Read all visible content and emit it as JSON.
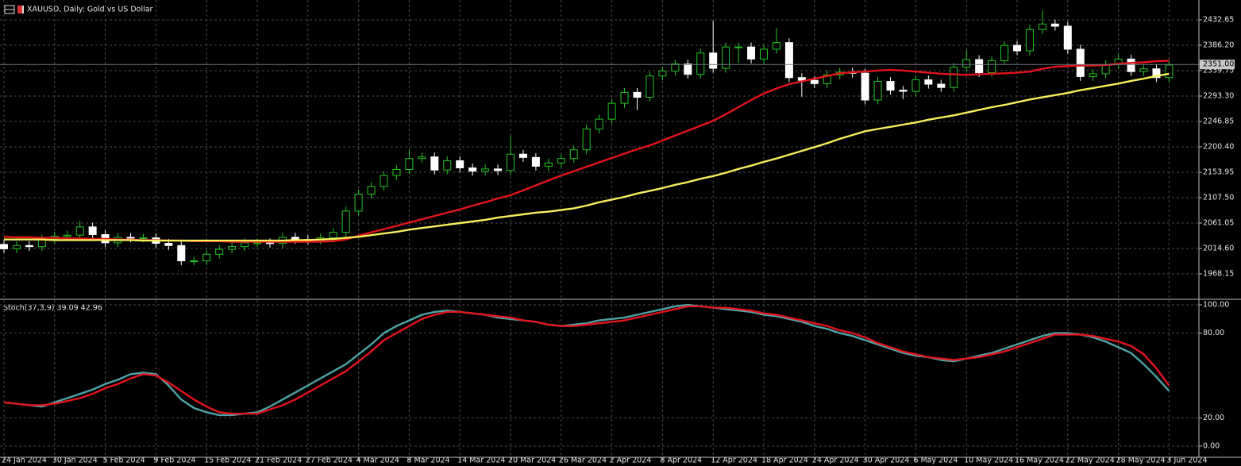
{
  "chart_data": [
    {
      "type": "candlestick",
      "title": "XAUUSD, Daily:  Gold vs US Dollar",
      "categories": [
        "24 Jan 2024",
        null,
        null,
        null,
        "30 Jan 2024",
        null,
        null,
        null,
        "5 Feb 2024",
        null,
        null,
        null,
        "9 Feb 2024",
        null,
        null,
        null,
        "15 Feb 2024",
        null,
        null,
        null,
        "21 Feb 2024",
        null,
        null,
        null,
        "27 Feb 2024",
        null,
        null,
        null,
        "4 Mar 2024",
        null,
        null,
        null,
        "8 Mar 2024",
        null,
        null,
        null,
        "14 Mar 2024",
        null,
        null,
        null,
        "20 Mar 2024",
        null,
        null,
        null,
        "26 Mar 2024",
        null,
        null,
        null,
        "2 Apr 2024",
        null,
        null,
        null,
        "8 Apr 2024",
        null,
        null,
        null,
        "12 Apr 2024",
        null,
        null,
        null,
        "18 Apr 2024",
        null,
        null,
        null,
        "24 Apr 2024",
        null,
        null,
        null,
        "30 Apr 2024",
        null,
        null,
        null,
        "6 May 2024",
        null,
        null,
        null,
        "10 May 2024",
        null,
        null,
        null,
        "16 May 2024",
        null,
        null,
        null,
        "22 May 2024",
        null,
        null,
        null,
        "28 May 2024",
        null,
        null,
        null,
        "3 Jun 2024"
      ],
      "open": [
        2022,
        2014,
        2020,
        2018,
        2032,
        2037,
        2039,
        2054,
        2040,
        2025,
        2035,
        2034,
        2034,
        2024,
        2020,
        1992,
        1992,
        2004,
        2013,
        2018,
        2025,
        2025,
        2024,
        2035,
        2031,
        2030,
        2034,
        2044,
        2083,
        2114,
        2128,
        2148,
        2159,
        2179,
        2182,
        2158,
        2175,
        2162,
        2156,
        2160,
        2157,
        2187,
        2181,
        2165,
        2171,
        2179,
        2195,
        2233,
        2251,
        2280,
        2300,
        2291,
        2330,
        2339,
        2352,
        2333,
        2372,
        2344,
        2383,
        2383,
        2361,
        2379,
        2391,
        2327,
        2322,
        2316,
        2332,
        2337,
        2335,
        2286,
        2320,
        2304,
        2302,
        2323,
        2315,
        2309,
        2346,
        2360,
        2336,
        2358,
        2386,
        2376,
        2415,
        2425,
        2421,
        2379,
        2329,
        2334,
        2351,
        2361,
        2338,
        2343,
        2327
      ],
      "high": [
        2030,
        2028,
        2028,
        2040,
        2045,
        2047,
        2065,
        2062,
        2048,
        2043,
        2043,
        2042,
        2042,
        2032,
        2028,
        2000,
        2012,
        2021,
        2026,
        2033,
        2033,
        2033,
        2043,
        2043,
        2039,
        2042,
        2052,
        2091,
        2122,
        2136,
        2156,
        2167,
        2195,
        2190,
        2190,
        2183,
        2183,
        2170,
        2168,
        2168,
        2222,
        2195,
        2189,
        2179,
        2187,
        2203,
        2241,
        2259,
        2288,
        2308,
        2308,
        2338,
        2347,
        2360,
        2360,
        2380,
        2431,
        2391,
        2391,
        2391,
        2387,
        2418,
        2399,
        2335,
        2330,
        2340,
        2345,
        2345,
        2343,
        2328,
        2328,
        2312,
        2331,
        2331,
        2323,
        2354,
        2378,
        2368,
        2366,
        2394,
        2394,
        2423,
        2450,
        2433,
        2429,
        2387,
        2342,
        2359,
        2369,
        2369,
        2351,
        2351,
        2358
      ],
      "low": [
        2006,
        2006,
        2010,
        2010,
        2024,
        2029,
        2031,
        2032,
        2017,
        2017,
        2026,
        2026,
        2016,
        2012,
        1984,
        1984,
        1984,
        1996,
        2005,
        2010,
        2017,
        2016,
        2016,
        2023,
        2022,
        2022,
        2026,
        2036,
        2075,
        2106,
        2120,
        2140,
        2151,
        2171,
        2150,
        2150,
        2154,
        2148,
        2148,
        2149,
        2149,
        2173,
        2157,
        2157,
        2163,
        2171,
        2187,
        2225,
        2243,
        2272,
        2268,
        2283,
        2322,
        2331,
        2325,
        2325,
        2336,
        2336,
        2354,
        2353,
        2353,
        2371,
        2319,
        2292,
        2308,
        2308,
        2324,
        2327,
        2278,
        2278,
        2296,
        2288,
        2294,
        2307,
        2301,
        2301,
        2338,
        2328,
        2328,
        2350,
        2368,
        2368,
        2407,
        2413,
        2371,
        2321,
        2321,
        2326,
        2343,
        2330,
        2330,
        2319,
        2319
      ],
      "close": [
        2014,
        2020,
        2018,
        2032,
        2037,
        2039,
        2054,
        2040,
        2025,
        2035,
        2034,
        2034,
        2024,
        2020,
        1992,
        1992,
        2004,
        2013,
        2018,
        2025,
        2025,
        2024,
        2035,
        2031,
        2030,
        2034,
        2044,
        2083,
        2114,
        2128,
        2148,
        2159,
        2179,
        2182,
        2158,
        2175,
        2162,
        2156,
        2160,
        2157,
        2187,
        2181,
        2165,
        2171,
        2179,
        2195,
        2233,
        2251,
        2280,
        2300,
        2291,
        2330,
        2339,
        2352,
        2333,
        2372,
        2344,
        2383,
        2383,
        2361,
        2379,
        2391,
        2327,
        2322,
        2316,
        2332,
        2337,
        2335,
        2286,
        2320,
        2304,
        2302,
        2323,
        2315,
        2309,
        2346,
        2360,
        2336,
        2358,
        2386,
        2376,
        2415,
        2425,
        2421,
        2379,
        2329,
        2334,
        2351,
        2361,
        2338,
        2343,
        2327,
        2350
      ],
      "up_color": "#22c522",
      "down_color": "#ffffff",
      "series": [
        {
          "color": "#e3141c",
          "values": [
            2036,
            2035,
            2035,
            2034,
            2034,
            2033,
            2033,
            2032,
            2032,
            2031,
            2031,
            2030,
            2030,
            2029,
            2029,
            2028,
            2028,
            2028,
            2027,
            2027,
            2027,
            2027,
            2027,
            2027,
            2027,
            2027,
            2028,
            2031,
            2038,
            2044,
            2050,
            2056,
            2062,
            2068,
            2074,
            2080,
            2086,
            2093,
            2099,
            2106,
            2112,
            2121,
            2130,
            2139,
            2148,
            2156,
            2164,
            2172,
            2180,
            2188,
            2196,
            2203,
            2212,
            2221,
            2230,
            2239,
            2248,
            2260,
            2273,
            2286,
            2298,
            2307,
            2315,
            2320,
            2325,
            2330,
            2335,
            2337,
            2338,
            2340,
            2341,
            2340,
            2338,
            2336,
            2334,
            2333,
            2332,
            2333,
            2334,
            2335,
            2336,
            2338,
            2343,
            2347,
            2348,
            2349,
            2349,
            2350,
            2352,
            2354,
            2355,
            2357,
            2358
          ]
        },
        {
          "color": "#f7ef5c",
          "values": [
            2031,
            2031,
            2031,
            2031,
            2030,
            2030,
            2030,
            2030,
            2030,
            2030,
            2030,
            2029,
            2029,
            2029,
            2029,
            2029,
            2029,
            2029,
            2029,
            2029,
            2029,
            2029,
            2029,
            2030,
            2030,
            2031,
            2032,
            2034,
            2036,
            2039,
            2042,
            2045,
            2049,
            2052,
            2055,
            2058,
            2061,
            2064,
            2067,
            2071,
            2074,
            2077,
            2080,
            2082,
            2085,
            2088,
            2093,
            2099,
            2104,
            2109,
            2115,
            2120,
            2125,
            2131,
            2136,
            2142,
            2147,
            2153,
            2160,
            2166,
            2173,
            2179,
            2186,
            2193,
            2200,
            2207,
            2215,
            2222,
            2229,
            2233,
            2237,
            2241,
            2245,
            2250,
            2254,
            2258,
            2263,
            2268,
            2273,
            2277,
            2282,
            2287,
            2291,
            2295,
            2299,
            2304,
            2308,
            2312,
            2316,
            2321,
            2325,
            2330,
            2334
          ]
        }
      ],
      "last_price": {
        "value": 2351,
        "label": "2351.00"
      },
      "ylim": [
        1921.7,
        2468.9
      ],
      "yticks": [
        2432.65,
        {
          "value": 2386.2,
          "label": "2386.20"
        },
        2339.75,
        {
          "value": 2293.3,
          "label": "2293.30"
        },
        2246.85,
        {
          "value": 2200.4,
          "label": "2200.40"
        },
        2153.95,
        {
          "value": 2107.5,
          "label": "2107.50"
        },
        2061.05,
        {
          "value": 2014.6,
          "label": "2014.60"
        },
        1968.15
      ],
      "grid": true
    },
    {
      "type": "line",
      "title": "Stoch(37,3,9) 39.09 42.96",
      "series": [
        {
          "color": "#4fa3a6",
          "values": [
            31,
            30,
            29,
            28,
            31,
            34,
            37,
            40,
            44,
            47,
            51,
            52,
            51,
            43,
            33,
            27,
            24,
            22,
            22,
            23,
            24,
            28,
            33,
            38,
            43,
            48,
            53,
            58,
            65,
            72,
            80,
            85,
            89,
            93,
            95,
            96,
            95,
            94,
            93,
            91,
            90,
            89,
            88,
            86,
            85,
            86,
            87,
            89,
            90,
            91,
            93,
            95,
            97,
            99,
            100,
            99,
            98,
            97,
            96,
            95,
            93,
            92,
            90,
            88,
            85,
            83,
            80,
            78,
            75,
            72,
            69,
            66,
            64,
            63,
            61,
            60,
            62,
            64,
            66,
            69,
            72,
            75,
            78,
            80,
            80,
            79,
            77,
            74,
            70,
            66,
            58,
            49,
            39.09
          ]
        },
        {
          "color": "#e3141c",
          "values": [
            31,
            30,
            29,
            29,
            30,
            32,
            34,
            37,
            41,
            44,
            48,
            51,
            50,
            45,
            39,
            33,
            28,
            24,
            23,
            23,
            23,
            26,
            29,
            33,
            38,
            43,
            48,
            53,
            60,
            67,
            75,
            80,
            85,
            90,
            93,
            95,
            95,
            94,
            93,
            92,
            91,
            89,
            88,
            86,
            85,
            85,
            86,
            87,
            88,
            89,
            91,
            93,
            95,
            97,
            99,
            99,
            98,
            98,
            97,
            96,
            94,
            93,
            91,
            89,
            87,
            85,
            82,
            80,
            77,
            73,
            70,
            67,
            65,
            63,
            62,
            61,
            62,
            63,
            65,
            67,
            70,
            73,
            76,
            79,
            79,
            79,
            78,
            76,
            74,
            71,
            65,
            55,
            42.96
          ]
        }
      ],
      "ylim": [
        -7.3,
        103.4
      ],
      "yticks": [
        {
          "value": 100,
          "label": "100.00"
        },
        {
          "value": 80,
          "label": "80.00"
        },
        {
          "value": 20,
          "label": "20.00"
        },
        {
          "value": 0,
          "label": "0.00"
        }
      ],
      "grid": true
    }
  ]
}
